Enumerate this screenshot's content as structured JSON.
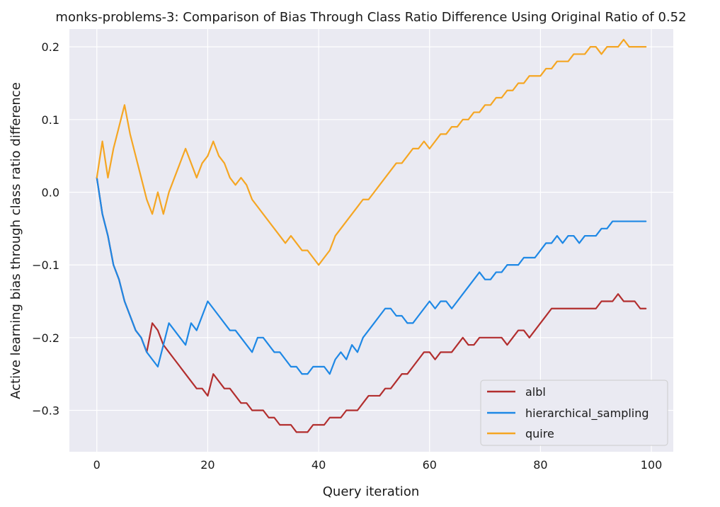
{
  "chart_data": {
    "type": "line",
    "title": "monks-problems-3: Comparison of Bias Through Class Ratio Difference Using Original Ratio of 0.52",
    "xlabel": "Query iteration",
    "ylabel": "Active learning bias through class ratio difference",
    "xlim": [
      -4.95,
      103.95
    ],
    "ylim": [
      -0.357,
      0.2245
    ],
    "xticks": [
      0,
      20,
      40,
      60,
      80,
      100
    ],
    "xtick_labels": [
      "0",
      "20",
      "40",
      "60",
      "80",
      "100"
    ],
    "yticks": [
      0.2,
      0.1,
      0.0,
      -0.1,
      -0.2,
      -0.3
    ],
    "ytick_labels": [
      "0.2",
      "0.1",
      "0.0",
      "−0.1",
      "−0.2",
      "−0.3"
    ],
    "grid": true,
    "legend_position": "lower-right",
    "background": "#eaeaf2",
    "series": [
      {
        "name": "albl",
        "color": "#b22e2e",
        "values": [
          0.02,
          -0.03,
          -0.06,
          -0.1,
          -0.12,
          -0.15,
          -0.17,
          -0.19,
          -0.2,
          -0.22,
          -0.18,
          -0.19,
          -0.21,
          -0.22,
          -0.23,
          -0.24,
          -0.25,
          -0.26,
          -0.27,
          -0.27,
          -0.28,
          -0.25,
          -0.26,
          -0.27,
          -0.27,
          -0.28,
          -0.29,
          -0.29,
          -0.3,
          -0.3,
          -0.3,
          -0.31,
          -0.31,
          -0.32,
          -0.32,
          -0.32,
          -0.33,
          -0.33,
          -0.33,
          -0.32,
          -0.32,
          -0.32,
          -0.31,
          -0.31,
          -0.31,
          -0.3,
          -0.3,
          -0.3,
          -0.29,
          -0.28,
          -0.28,
          -0.28,
          -0.27,
          -0.27,
          -0.26,
          -0.25,
          -0.25,
          -0.24,
          -0.23,
          -0.22,
          -0.22,
          -0.23,
          -0.22,
          -0.22,
          -0.22,
          -0.21,
          -0.2,
          -0.21,
          -0.21,
          -0.2,
          -0.2,
          -0.2,
          -0.2,
          -0.2,
          -0.21,
          -0.2,
          -0.19,
          -0.19,
          -0.2,
          -0.19,
          -0.18,
          -0.17,
          -0.16,
          -0.16,
          -0.16,
          -0.16,
          -0.16,
          -0.16,
          -0.16,
          -0.16,
          -0.16,
          -0.15,
          -0.15,
          -0.15,
          -0.14,
          -0.15,
          -0.15,
          -0.15,
          -0.16,
          -0.16
        ]
      },
      {
        "name": "hierarchical_sampling",
        "color": "#1e88e5",
        "values": [
          0.02,
          -0.03,
          -0.06,
          -0.1,
          -0.12,
          -0.15,
          -0.17,
          -0.19,
          -0.2,
          -0.22,
          -0.23,
          -0.24,
          -0.21,
          -0.18,
          -0.19,
          -0.2,
          -0.21,
          -0.18,
          -0.19,
          -0.17,
          -0.15,
          -0.16,
          -0.17,
          -0.18,
          -0.19,
          -0.19,
          -0.2,
          -0.21,
          -0.22,
          -0.2,
          -0.2,
          -0.21,
          -0.22,
          -0.22,
          -0.23,
          -0.24,
          -0.24,
          -0.25,
          -0.25,
          -0.24,
          -0.24,
          -0.24,
          -0.25,
          -0.23,
          -0.22,
          -0.23,
          -0.21,
          -0.22,
          -0.2,
          -0.19,
          -0.18,
          -0.17,
          -0.16,
          -0.16,
          -0.17,
          -0.17,
          -0.18,
          -0.18,
          -0.17,
          -0.16,
          -0.15,
          -0.16,
          -0.15,
          -0.15,
          -0.16,
          -0.15,
          -0.14,
          -0.13,
          -0.12,
          -0.11,
          -0.12,
          -0.12,
          -0.11,
          -0.11,
          -0.1,
          -0.1,
          -0.1,
          -0.09,
          -0.09,
          -0.09,
          -0.08,
          -0.07,
          -0.07,
          -0.06,
          -0.07,
          -0.06,
          -0.06,
          -0.07,
          -0.06,
          -0.06,
          -0.06,
          -0.05,
          -0.05,
          -0.04,
          -0.04,
          -0.04,
          -0.04,
          -0.04,
          -0.04,
          -0.04
        ]
      },
      {
        "name": "quire",
        "color": "#f5a623",
        "values": [
          0.02,
          0.07,
          0.02,
          0.06,
          0.09,
          0.12,
          0.08,
          0.05,
          0.02,
          -0.01,
          -0.03,
          0.0,
          -0.03,
          0.0,
          0.02,
          0.04,
          0.06,
          0.04,
          0.02,
          0.04,
          0.05,
          0.07,
          0.05,
          0.04,
          0.02,
          0.01,
          0.02,
          0.01,
          -0.01,
          -0.02,
          -0.03,
          -0.04,
          -0.05,
          -0.06,
          -0.07,
          -0.06,
          -0.07,
          -0.08,
          -0.08,
          -0.09,
          -0.1,
          -0.09,
          -0.08,
          -0.06,
          -0.05,
          -0.04,
          -0.03,
          -0.02,
          -0.01,
          -0.01,
          0.0,
          0.01,
          0.02,
          0.03,
          0.04,
          0.04,
          0.05,
          0.06,
          0.06,
          0.07,
          0.06,
          0.07,
          0.08,
          0.08,
          0.09,
          0.09,
          0.1,
          0.1,
          0.11,
          0.11,
          0.12,
          0.12,
          0.13,
          0.13,
          0.14,
          0.14,
          0.15,
          0.15,
          0.16,
          0.16,
          0.16,
          0.17,
          0.17,
          0.18,
          0.18,
          0.18,
          0.19,
          0.19,
          0.19,
          0.2,
          0.2,
          0.19,
          0.2,
          0.2,
          0.2,
          0.21,
          0.2,
          0.2,
          0.2,
          0.2
        ]
      }
    ]
  }
}
